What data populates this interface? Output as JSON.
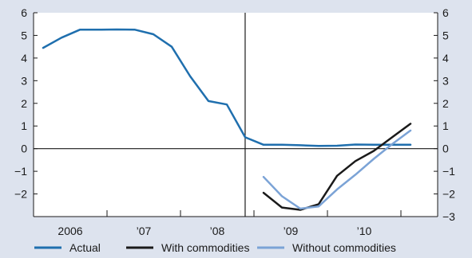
{
  "chart_data": {
    "type": "line",
    "title": "",
    "xlabel": "",
    "ylabel": "",
    "ylim": [
      -3,
      6
    ],
    "left_ticks": [
      "6",
      "5",
      "4",
      "3",
      "2",
      "1",
      "0",
      "−1",
      "−2"
    ],
    "left_tick_values": [
      6,
      5,
      4,
      3,
      2,
      1,
      0,
      -1,
      -2
    ],
    "right_ticks": [
      "6",
      "5",
      "4",
      "3",
      "2",
      "1",
      "0",
      "−1",
      "−2",
      "−3"
    ],
    "right_tick_values": [
      6,
      5,
      4,
      3,
      2,
      1,
      0,
      -1,
      -2,
      -3
    ],
    "x_range": [
      2005.5,
      2011.0
    ],
    "x_tick_labels": [
      "2006",
      "’07",
      "’08",
      "’09",
      "’10"
    ],
    "x_tick_label_positions": [
      2006.0,
      2007.0,
      2008.0,
      2009.0,
      2010.0
    ],
    "x_year_dividers": [
      2005.5,
      2006.5,
      2007.5,
      2008.5,
      2009.5,
      2010.5
    ],
    "vertical_marker_x": 2008.38,
    "legend_position": "bottom",
    "series": [
      {
        "name": "Actual",
        "color": "#1f6fae",
        "x": [
          2005.63,
          2005.88,
          2006.13,
          2006.38,
          2006.63,
          2006.88,
          2007.13,
          2007.38,
          2007.63,
          2007.88,
          2008.13,
          2008.38,
          2008.63,
          2008.88,
          2009.13,
          2009.38,
          2009.63,
          2009.88,
          2010.13,
          2010.38,
          2010.63
        ],
        "values": [
          4.45,
          4.9,
          5.25,
          5.25,
          5.26,
          5.25,
          5.05,
          4.5,
          3.2,
          2.1,
          1.95,
          0.5,
          0.17,
          0.17,
          0.15,
          0.12,
          0.13,
          0.18,
          0.17,
          0.17,
          0.17
        ]
      },
      {
        "name": "With commodities",
        "color": "#1a1a1a",
        "x": [
          2008.63,
          2008.88,
          2009.13,
          2009.38,
          2009.63,
          2009.88,
          2010.13,
          2010.38,
          2010.63
        ],
        "values": [
          -1.95,
          -2.6,
          -2.7,
          -2.45,
          -1.2,
          -0.55,
          -0.1,
          0.5,
          1.1
        ]
      },
      {
        "name": "Without commodities",
        "color": "#7ba3d6",
        "x": [
          2008.63,
          2008.88,
          2009.13,
          2009.38,
          2009.63,
          2009.88,
          2010.13,
          2010.38,
          2010.63
        ],
        "values": [
          -1.25,
          -2.1,
          -2.65,
          -2.55,
          -1.8,
          -1.15,
          -0.45,
          0.2,
          0.8
        ]
      }
    ]
  }
}
